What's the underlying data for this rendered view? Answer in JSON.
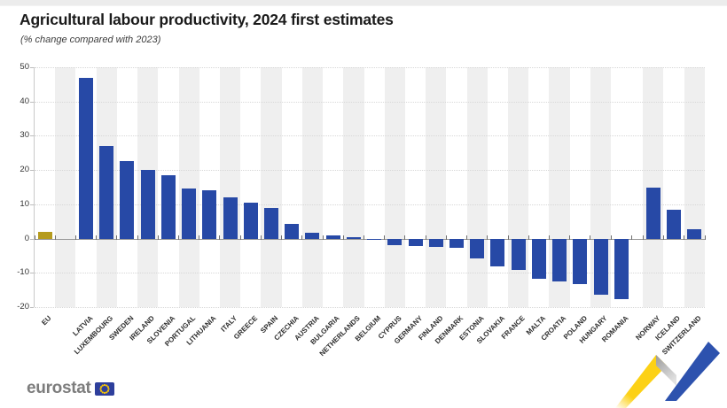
{
  "header": {
    "title": "Agricultural labour productivity, 2024 first estimates",
    "subtitle": "(% change compared with 2023)"
  },
  "chart_data": {
    "type": "bar",
    "title": "Agricultural labour productivity, 2024 first estimates",
    "subtitle": "(% change compared with 2023)",
    "ylabel": "% change compared with 2023",
    "xlabel": "",
    "ylim": [
      -20,
      50
    ],
    "yticks": [
      50,
      40,
      30,
      20,
      10,
      0,
      -10,
      -20
    ],
    "grid": "horizontal-dotted",
    "legend": "none",
    "bars": [
      {
        "label": "EU",
        "value": 2,
        "color": "gold"
      },
      {
        "label": "LATVIA",
        "value": 47,
        "color": "blue"
      },
      {
        "label": "LUXEMBOURG",
        "value": 27,
        "color": "blue"
      },
      {
        "label": "SWEDEN",
        "value": 22.5,
        "color": "blue"
      },
      {
        "label": "IRELAND",
        "value": 20,
        "color": "blue"
      },
      {
        "label": "SLOVENIA",
        "value": 18.5,
        "color": "blue"
      },
      {
        "label": "PORTUGAL",
        "value": 14.5,
        "color": "blue"
      },
      {
        "label": "LITHUANIA",
        "value": 14,
        "color": "blue"
      },
      {
        "label": "ITALY",
        "value": 12,
        "color": "blue"
      },
      {
        "label": "GREECE",
        "value": 10.5,
        "color": "blue"
      },
      {
        "label": "SPAIN",
        "value": 9,
        "color": "blue"
      },
      {
        "label": "CZECHIA",
        "value": 4.3,
        "color": "blue"
      },
      {
        "label": "AUSTRIA",
        "value": 1.7,
        "color": "blue"
      },
      {
        "label": "BULGARIA",
        "value": 0.8,
        "color": "blue"
      },
      {
        "label": "NETHERLANDS",
        "value": 0.3,
        "color": "blue"
      },
      {
        "label": "BELGIUM",
        "value": -0.4,
        "color": "blue"
      },
      {
        "label": "CYPRUS",
        "value": -1.9,
        "color": "blue"
      },
      {
        "label": "GERMANY",
        "value": -2.3,
        "color": "blue"
      },
      {
        "label": "FINLAND",
        "value": -2.5,
        "color": "blue"
      },
      {
        "label": "DENMARK",
        "value": -2.8,
        "color": "blue"
      },
      {
        "label": "ESTONIA",
        "value": -5.7,
        "color": "blue"
      },
      {
        "label": "SLOVAKIA",
        "value": -8,
        "color": "blue"
      },
      {
        "label": "FRANCE",
        "value": -9.2,
        "color": "blue"
      },
      {
        "label": "MALTA",
        "value": -11.8,
        "color": "blue"
      },
      {
        "label": "CROATIA",
        "value": -12.4,
        "color": "blue"
      },
      {
        "label": "POLAND",
        "value": -13.3,
        "color": "blue"
      },
      {
        "label": "HUNGARY",
        "value": -16.3,
        "color": "blue"
      },
      {
        "label": "ROMANIA",
        "value": -17.7,
        "color": "blue"
      },
      {
        "label": "NORWAY",
        "value": 15,
        "color": "blue"
      },
      {
        "label": "ICELAND",
        "value": 8.5,
        "color": "blue"
      },
      {
        "label": "SWITZERLAND",
        "value": 2.8,
        "color": "blue"
      }
    ],
    "gaps_after": [
      {
        "after": "EU",
        "width": 1
      },
      {
        "after": "ROMANIA",
        "width": 0.55
      }
    ]
  },
  "colors": {
    "bar_blue": "#2749a6",
    "bar_gold": "#b59b1e",
    "stripe": "#efefef",
    "grid": "#d7d7d7",
    "zero_line": "#979797",
    "ribbon_yellow": "#fcd116",
    "ribbon_gray": "#9a9a9a",
    "ribbon_blue": "#2d52ae",
    "flag_blue": "#2e3f9c",
    "flag_stars": "#ffcc00"
  },
  "footer": {
    "logo_text": "eurostat"
  }
}
